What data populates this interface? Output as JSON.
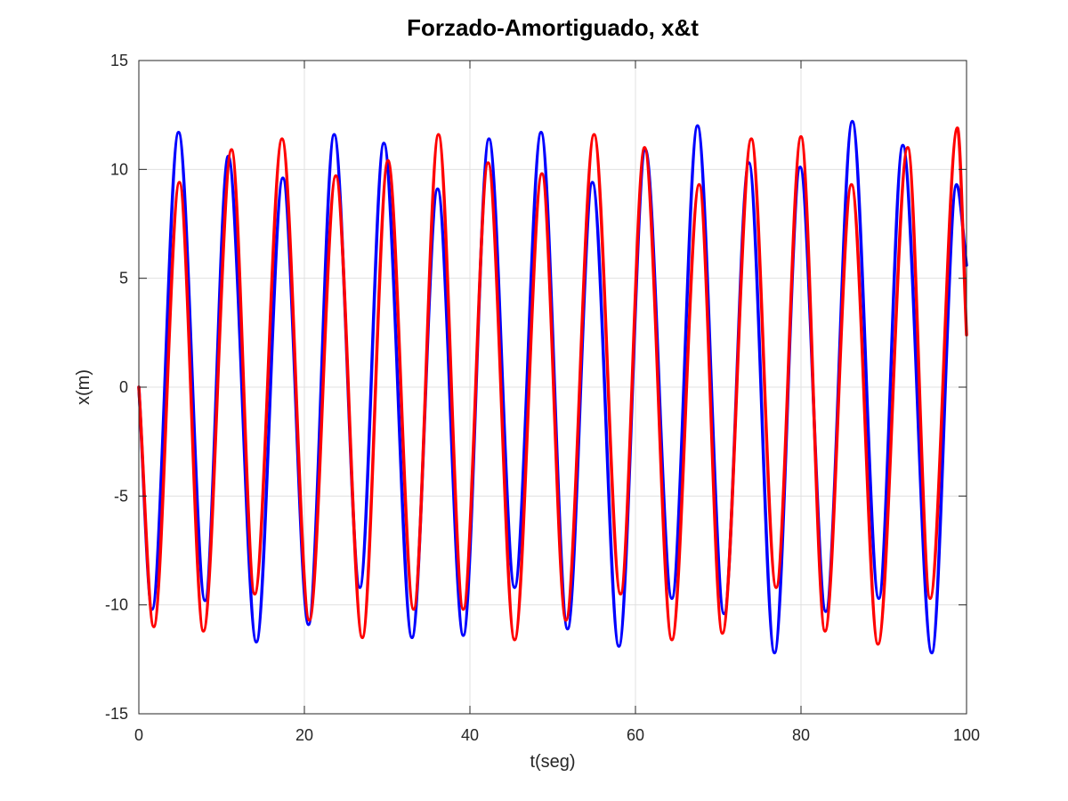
{
  "chart_data": {
    "type": "line",
    "title": "Forzado-Amortiguado, x&t",
    "xlabel": "t(seg)",
    "ylabel": "x(m)",
    "xlim": [
      0,
      100
    ],
    "ylim": [
      -15,
      15
    ],
    "xticks": [
      0,
      20,
      40,
      60,
      80,
      100
    ],
    "yticks": [
      -15,
      -10,
      -5,
      0,
      5,
      10,
      15
    ],
    "xtick_labels": [
      "0",
      "20",
      "40",
      "60",
      "80",
      "100"
    ],
    "ytick_labels": [
      "-15",
      "-10",
      "-5",
      "0",
      "5",
      "10",
      "15"
    ],
    "grid": true,
    "legend": "none",
    "series": [
      {
        "color": "#0000ff",
        "x": [
          0,
          1.6,
          4.8,
          8.0,
          10.8,
          14.2,
          17.4,
          20.5,
          23.6,
          26.7,
          29.6,
          33.0,
          36.1,
          39.2,
          42.3,
          45.4,
          48.6,
          51.8,
          54.8,
          58.0,
          61.2,
          64.4,
          67.5,
          70.7,
          73.7,
          76.8,
          79.9,
          83.0,
          86.2,
          89.4,
          92.3,
          95.8,
          98.8,
          100
        ],
        "y": [
          0,
          -10.2,
          11.7,
          -9.8,
          10.6,
          -11.7,
          9.6,
          -10.9,
          11.6,
          -9.2,
          11.2,
          -11.5,
          9.1,
          -11.4,
          11.4,
          -9.2,
          11.7,
          -11.1,
          9.4,
          -11.9,
          10.9,
          -9.7,
          12.0,
          -10.4,
          10.3,
          -12.2,
          10.1,
          -10.3,
          12.2,
          -9.7,
          11.1,
          -12.2,
          9.3,
          5.6
        ]
      },
      {
        "color": "#ff0000",
        "x": [
          0,
          1.8,
          4.9,
          7.8,
          11.2,
          14.0,
          17.3,
          20.6,
          23.8,
          27.0,
          30.1,
          33.2,
          36.2,
          39.2,
          42.2,
          45.4,
          48.7,
          51.6,
          55.0,
          58.2,
          61.1,
          64.4,
          67.7,
          70.5,
          74.0,
          77.0,
          80.0,
          82.9,
          86.1,
          89.3,
          92.9,
          95.6,
          98.9,
          100
        ],
        "y": [
          0,
          -11.0,
          9.4,
          -11.2,
          10.9,
          -9.5,
          11.4,
          -10.7,
          9.7,
          -11.5,
          10.4,
          -10.2,
          11.6,
          -10.2,
          10.3,
          -11.6,
          9.8,
          -10.7,
          11.6,
          -9.5,
          11.0,
          -11.6,
          9.3,
          -11.3,
          11.4,
          -9.2,
          11.5,
          -11.2,
          9.3,
          -11.8,
          11.0,
          -9.7,
          11.9,
          2.4
        ]
      }
    ]
  }
}
